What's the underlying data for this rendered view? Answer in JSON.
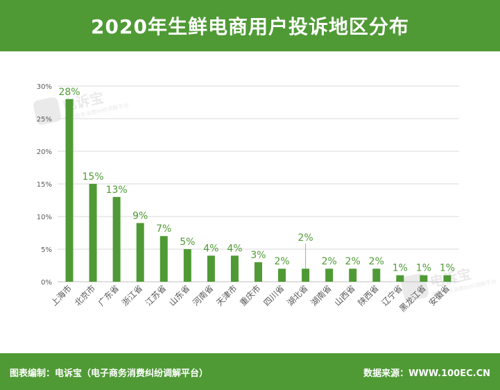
{
  "title": "2020年生鲜电商用户投诉地区分布",
  "footer": {
    "left": "图表编制：电诉宝（电子商务消费纠纷调解平台）",
    "right": "数据来源：WWW.100EC.CN"
  },
  "watermark": {
    "name": "电诉宝",
    "sub": "电子商务消费纠纷调解平台"
  },
  "colors": {
    "brand": "#4f9a35",
    "bar": "#4f9a35",
    "grid": "#d9d9d9"
  },
  "chart_data": {
    "type": "bar",
    "title": "2020年生鲜电商用户投诉地区分布",
    "xlabel": "",
    "ylabel": "",
    "ylim": [
      0,
      30
    ],
    "yticks": [
      "0%",
      "5%",
      "10%",
      "15%",
      "20%",
      "25%",
      "30%"
    ],
    "categories": [
      "上海市",
      "北京市",
      "广东省",
      "浙江省",
      "江苏省",
      "山东省",
      "河南省",
      "天津市",
      "重庆市",
      "四川省",
      "湖北省",
      "湖南省",
      "山西省",
      "陕西省",
      "辽宁省",
      "黑龙江省",
      "安徽省"
    ],
    "values": [
      28,
      15,
      13,
      9,
      7,
      5,
      4,
      4,
      3,
      2,
      2,
      2,
      2,
      2,
      1,
      1,
      1
    ],
    "labels": [
      "28%",
      "15%",
      "13%",
      "9%",
      "7%",
      "5%",
      "4%",
      "4%",
      "3%",
      "2%",
      "2%",
      "2%",
      "2%",
      "2%",
      "1%",
      "1%",
      "1%"
    ],
    "grid": true,
    "legend": "none"
  }
}
